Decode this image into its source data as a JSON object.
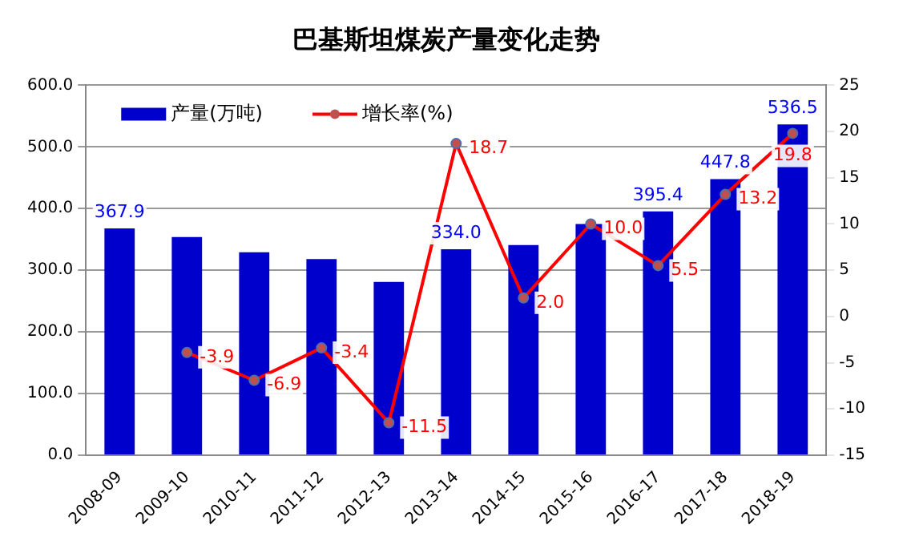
{
  "chart_data": {
    "type": "bar",
    "title": "巴基斯坦煤炭产量变化走势",
    "categories": [
      "2008-09",
      "2009-10",
      "2010-11",
      "2011-12",
      "2012-13",
      "2013-14",
      "2014-15",
      "2015-16",
      "2016-17",
      "2017-18",
      "2018-19"
    ],
    "series": [
      {
        "name": "产量(万吨)",
        "color": "#0000cc",
        "values": [
          367.9,
          354,
          329,
          318,
          281,
          334.0,
          341,
          375,
          395.4,
          447.8,
          536.5
        ],
        "value_labels": [
          "367.9",
          null,
          null,
          null,
          null,
          "334.0",
          null,
          null,
          "395.4",
          "447.8",
          "536.5"
        ]
      },
      {
        "name": "增长率(%)",
        "type": "line",
        "axis": "y2",
        "color": "#ff0000",
        "marker": "circle",
        "values": [
          null,
          -3.9,
          -6.9,
          -3.4,
          -11.5,
          18.7,
          2.0,
          10.0,
          5.5,
          13.2,
          19.8
        ],
        "value_labels": [
          null,
          "-3.9",
          "-6.9",
          "-3.4",
          "-11.5",
          "18.7",
          "2.0",
          "10.0",
          "5.5",
          "13.2",
          "19.8"
        ]
      }
    ],
    "ylim": [
      0,
      600
    ],
    "yticks": [
      {
        "value": 0,
        "label": "0.0"
      },
      {
        "value": 100,
        "label": "100.0"
      },
      {
        "value": 200,
        "label": "200.0"
      },
      {
        "value": 300,
        "label": "300.0"
      },
      {
        "value": 400,
        "label": "400.0"
      },
      {
        "value": 500,
        "label": "500.0"
      },
      {
        "value": 600,
        "label": "600.0"
      }
    ],
    "y2lim": [
      -15,
      25
    ],
    "y2ticks": [
      -15,
      -10,
      -5,
      0,
      5,
      10,
      15,
      20,
      25
    ],
    "grid": "y",
    "legend": "top left"
  }
}
